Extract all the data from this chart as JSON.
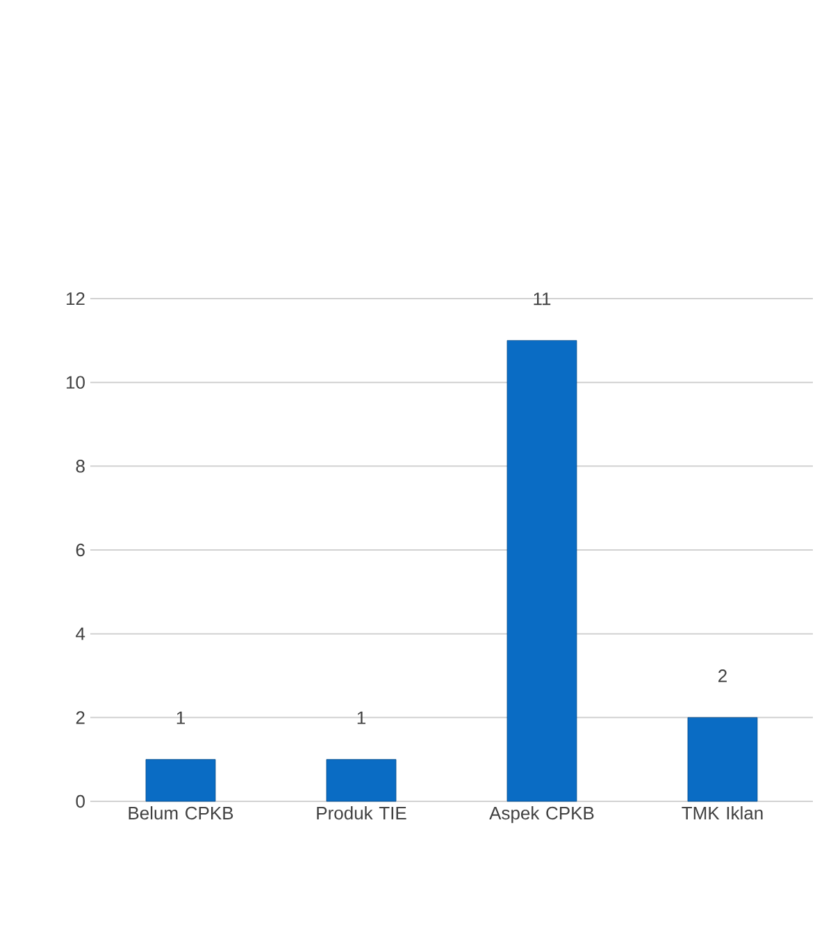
{
  "chart_data": {
    "type": "bar",
    "categories": [
      "Belum CPKB",
      "Produk TIE",
      "Aspek CPKB",
      "TMK Iklan"
    ],
    "values": [
      1,
      1,
      11,
      2
    ],
    "color": "#0a6cc4",
    "ylim": [
      0,
      12
    ],
    "yticks": [
      0,
      2,
      4,
      6,
      8,
      10,
      12
    ],
    "grid": "y",
    "data_labels": true
  }
}
